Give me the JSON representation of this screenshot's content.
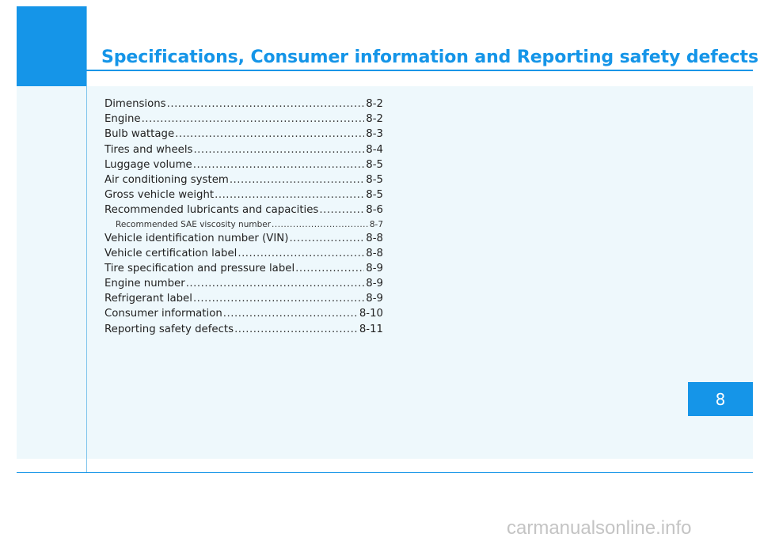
{
  "header": {
    "title": "Specifications, Consumer information and Reporting safety defects"
  },
  "toc": [
    {
      "label": "Dimensions",
      "page": "8-2"
    },
    {
      "label": "Engine",
      "page": "8-2"
    },
    {
      "label": "Bulb wattage",
      "page": "8-3"
    },
    {
      "label": "Tires and wheels",
      "page": "8-4"
    },
    {
      "label": "Luggage volume",
      "page": "8-5"
    },
    {
      "label": "Air conditioning system",
      "page": "8-5"
    },
    {
      "label": "Gross vehicle weight",
      "page": "8-5"
    },
    {
      "label": "Recommended lubricants and capacities",
      "page": "8-6"
    },
    {
      "label": "Recommended SAE viscosity number",
      "page": "8-7"
    },
    {
      "label": "Vehicle identification number (VIN)",
      "page": "8-8"
    },
    {
      "label": "Vehicle certification label",
      "page": "8-8"
    },
    {
      "label": "Tire specification and pressure label",
      "page": "8-9"
    },
    {
      "label": "Engine number",
      "page": "8-9"
    },
    {
      "label": "Refrigerant label",
      "page": "8-9"
    },
    {
      "label": "Consumer information",
      "page": "8-10"
    },
    {
      "label": "Reporting safety defects",
      "page": "8-11"
    }
  ],
  "chapter_tab": "8",
  "watermark": "carmanualsonline.info",
  "colors": {
    "accent": "#1595e8",
    "panel": "#eef8fc"
  }
}
